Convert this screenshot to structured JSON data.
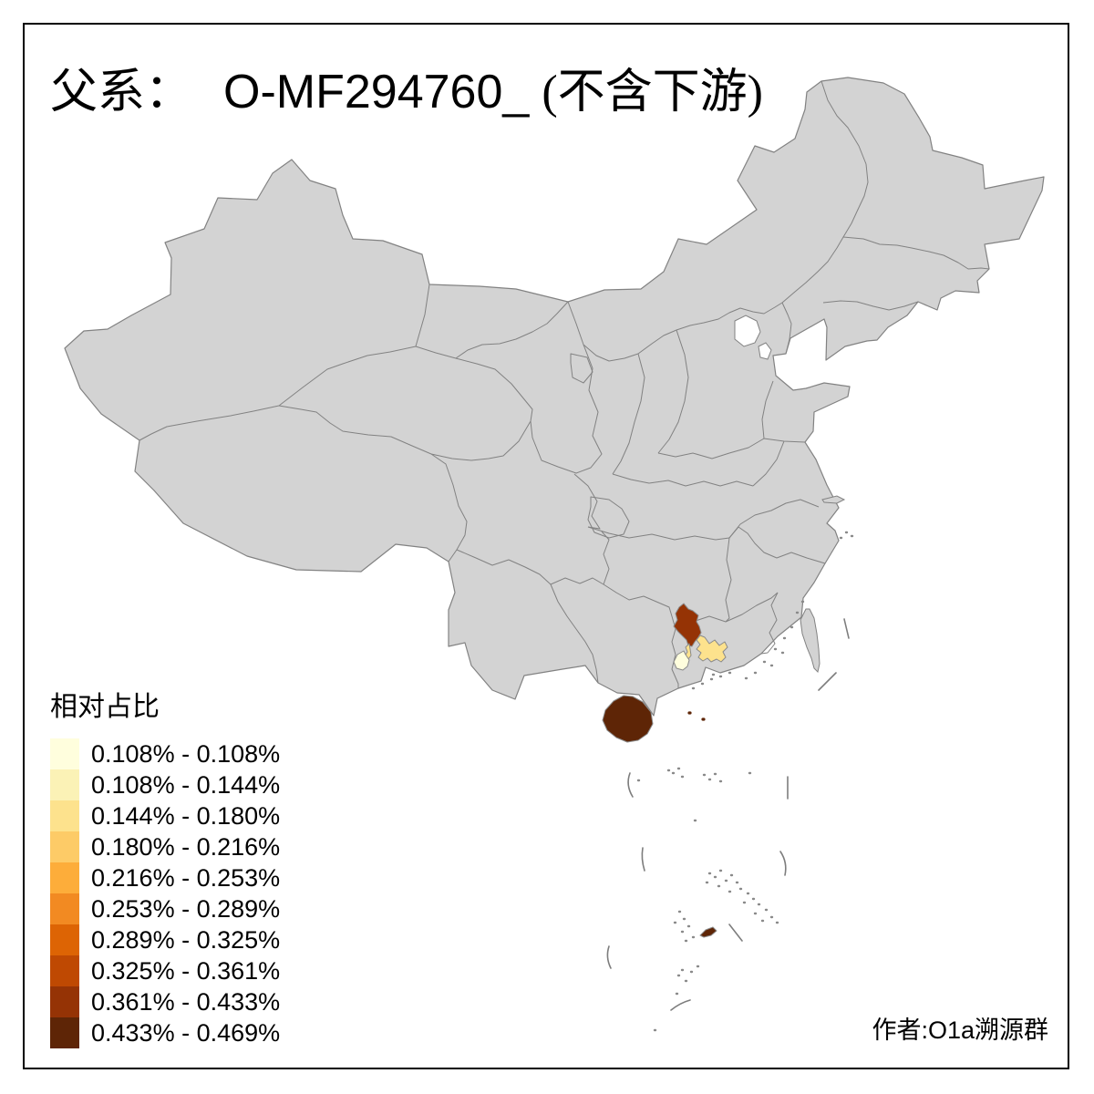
{
  "title": {
    "prefix": "父系：",
    "code": "O-MF294760_",
    "suffix": "(不含下游)"
  },
  "legend": {
    "title": "相对占比",
    "classes": [
      {
        "label": "0.108% - 0.108%",
        "color": "#FFFEDD"
      },
      {
        "label": "0.108% - 0.144%",
        "color": "#FBF2B6"
      },
      {
        "label": "0.144% - 0.180%",
        "color": "#FDE28D"
      },
      {
        "label": "0.180% - 0.216%",
        "color": "#FDCB67"
      },
      {
        "label": "0.216% - 0.253%",
        "color": "#FDAD3A"
      },
      {
        "label": "0.253% - 0.289%",
        "color": "#F28A22"
      },
      {
        "label": "0.289% - 0.325%",
        "color": "#DD6404"
      },
      {
        "label": "0.325% - 0.361%",
        "color": "#BF4902"
      },
      {
        "label": "0.361% - 0.433%",
        "color": "#953305"
      },
      {
        "label": "0.433% - 0.469%",
        "color": "#5E2506"
      }
    ]
  },
  "map": {
    "base_fill": "#D3D3D3",
    "border_color": "#828282",
    "frame_color": "#000000",
    "highlights": [
      {
        "id": "prefecture-dark-red",
        "color": "#953305",
        "range": "0.361% - 0.433%"
      },
      {
        "id": "prefecture-yellow-west",
        "color": "#FDE28D",
        "range": "0.144% - 0.180%"
      },
      {
        "id": "prefecture-yellow-east",
        "color": "#FDE28D",
        "range": "0.144% - 0.180%"
      },
      {
        "id": "prefecture-cream",
        "color": "#FFFEDD",
        "range": "0.108% - 0.108%"
      },
      {
        "id": "hainan-island",
        "color": "#5E2506",
        "range": "0.433% - 0.469%"
      },
      {
        "id": "south-sea-islands",
        "color": "#5E2506",
        "range": "0.433% - 0.469%"
      }
    ]
  },
  "attribution": "作者:O1a溯源群"
}
